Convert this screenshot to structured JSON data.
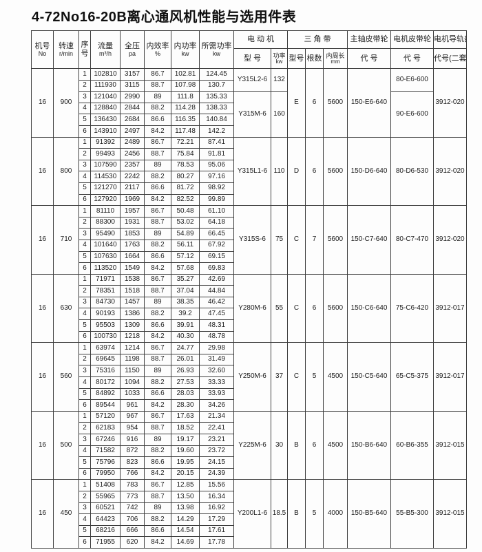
{
  "title": "4-72No16-20B离心通风机性能与选用件表",
  "table": {
    "headers": {
      "machine_no": {
        "l1": "机号",
        "l2": "No"
      },
      "speed": {
        "l1": "转速",
        "l2": "r/min"
      },
      "seq": {
        "l1": "序",
        "l2": "号"
      },
      "flow": {
        "l1": "流量",
        "l2": "m³/h"
      },
      "pressure": {
        "l1": "全压",
        "l2": "pa"
      },
      "efficiency": {
        "l1": "内效率",
        "l2": "%"
      },
      "internal_power": {
        "l1": "内功率",
        "l2": "kw"
      },
      "required_power": {
        "l1": "所需功率",
        "l2": "kw"
      },
      "motor_group": "电 动 机",
      "motor_model": "型 号",
      "motor_power": {
        "l1": "功率",
        "l2": "kw"
      },
      "belt_group": "三 角 带",
      "belt_model": "型号",
      "belt_count": "根数",
      "belt_length": {
        "l1": "内周长",
        "l2": "mm"
      },
      "main_pulley_group": "主轴皮带轮",
      "main_pulley_code": "代 号",
      "motor_pulley_group": "电机皮带轮",
      "motor_pulley_code": "代 号",
      "rail_group": "电机导轨部",
      "rail_code": "代号(二套)"
    },
    "blocks": [
      {
        "machine_no": "16",
        "speed": "900",
        "rows": [
          [
            "1",
            "102810",
            "3157",
            "86.7",
            "102.81",
            "124.45"
          ],
          [
            "2",
            "111930",
            "3115",
            "88.7",
            "107.98",
            "130.7"
          ],
          [
            "3",
            "121040",
            "2990",
            "89",
            "111.8",
            "135.33"
          ],
          [
            "4",
            "128840",
            "2844",
            "88.2",
            "114.28",
            "138.33"
          ],
          [
            "5",
            "136430",
            "2684",
            "86.6",
            "116.35",
            "140.84"
          ],
          [
            "6",
            "143910",
            "2497",
            "84.2",
            "117.48",
            "142.2"
          ]
        ],
        "motors": [
          {
            "model": "Y315L2-6",
            "power": "132",
            "span": 2
          },
          {
            "model": "Y315M-6",
            "power": "160",
            "span": 4
          }
        ],
        "belt": {
          "model": "E",
          "count": "6",
          "length": "5600"
        },
        "main_pulley": "150-E6-640",
        "motor_pulleys": [
          {
            "code": "80-E6-600",
            "span": 2
          },
          {
            "code": "90-E6-600",
            "span": 4
          }
        ],
        "rail": "3912-020"
      },
      {
        "machine_no": "16",
        "speed": "800",
        "rows": [
          [
            "1",
            "91392",
            "2489",
            "86.7",
            "72.21",
            "87.41"
          ],
          [
            "2",
            "99493",
            "2456",
            "88.7",
            "75.84",
            "91.81"
          ],
          [
            "3",
            "107590",
            "2357",
            "89",
            "78.53",
            "95.06"
          ],
          [
            "4",
            "114530",
            "2242",
            "88.2",
            "80.27",
            "97.16"
          ],
          [
            "5",
            "121270",
            "2117",
            "86.6",
            "81.72",
            "98.92"
          ],
          [
            "6",
            "127920",
            "1969",
            "84.2",
            "82.52",
            "99.89"
          ]
        ],
        "motors": [
          {
            "model": "Y315L1-6",
            "power": "110",
            "span": 6
          }
        ],
        "belt": {
          "model": "D",
          "count": "6",
          "length": "5600"
        },
        "main_pulley": "150-D6-640",
        "motor_pulleys": [
          {
            "code": "80-D6-530",
            "span": 6
          }
        ],
        "rail": "3912-020"
      },
      {
        "machine_no": "16",
        "speed": "710",
        "rows": [
          [
            "1",
            "81110",
            "1957",
            "86.7",
            "50.48",
            "61.10"
          ],
          [
            "2",
            "88300",
            "1931",
            "88.7",
            "53.02",
            "64.18"
          ],
          [
            "3",
            "95490",
            "1853",
            "89",
            "54.89",
            "66.45"
          ],
          [
            "4",
            "101640",
            "1763",
            "88.2",
            "56.11",
            "67.92"
          ],
          [
            "5",
            "107630",
            "1664",
            "86.6",
            "57.12",
            "69.15"
          ],
          [
            "6",
            "113520",
            "1549",
            "84.2",
            "57.68",
            "69.83"
          ]
        ],
        "motors": [
          {
            "model": "Y315S-6",
            "power": "75",
            "span": 6
          }
        ],
        "belt": {
          "model": "C",
          "count": "7",
          "length": "5600"
        },
        "main_pulley": "150-C7-640",
        "motor_pulleys": [
          {
            "code": "80-C7-470",
            "span": 6
          }
        ],
        "rail": "3912-020"
      },
      {
        "machine_no": "16",
        "speed": "630",
        "rows": [
          [
            "1",
            "71971",
            "1538",
            "86.7",
            "35.27",
            "42.69"
          ],
          [
            "2",
            "78351",
            "1518",
            "88.7",
            "37.04",
            "44.84"
          ],
          [
            "3",
            "84730",
            "1457",
            "89",
            "38.35",
            "46.42"
          ],
          [
            "4",
            "90193",
            "1386",
            "88.2",
            "39.2",
            "47.45"
          ],
          [
            "5",
            "95503",
            "1309",
            "86.6",
            "39.91",
            "48.31"
          ],
          [
            "6",
            "100730",
            "1218",
            "84.2",
            "40.30",
            "48.78"
          ]
        ],
        "motors": [
          {
            "model": "Y280M-6",
            "power": "55",
            "span": 6
          }
        ],
        "belt": {
          "model": "C",
          "count": "6",
          "length": "5600"
        },
        "main_pulley": "150-C6-640",
        "motor_pulleys": [
          {
            "code": "75-C6-420",
            "span": 6
          }
        ],
        "rail": "3912-017"
      },
      {
        "machine_no": "16",
        "speed": "560",
        "rows": [
          [
            "1",
            "63974",
            "1214",
            "86.7",
            "24.77",
            "29.98"
          ],
          [
            "2",
            "69645",
            "1198",
            "88.7",
            "26.01",
            "31.49"
          ],
          [
            "3",
            "75316",
            "1150",
            "89",
            "26.93",
            "32.60"
          ],
          [
            "4",
            "80172",
            "1094",
            "88.2",
            "27.53",
            "33.33"
          ],
          [
            "5",
            "84892",
            "1033",
            "86.6",
            "28.03",
            "33.93"
          ],
          [
            "6",
            "89544",
            "961",
            "84.2",
            "28.30",
            "34.26"
          ]
        ],
        "motors": [
          {
            "model": "Y250M-6",
            "power": "37",
            "span": 6
          }
        ],
        "belt": {
          "model": "C",
          "count": "5",
          "length": "4500"
        },
        "main_pulley": "150-C5-640",
        "motor_pulleys": [
          {
            "code": "65-C5-375",
            "span": 6
          }
        ],
        "rail": "3912-017"
      },
      {
        "machine_no": "16",
        "speed": "500",
        "rows": [
          [
            "1",
            "57120",
            "967",
            "86.7",
            "17.63",
            "21.34"
          ],
          [
            "2",
            "62183",
            "954",
            "88.7",
            "18.52",
            "22.41"
          ],
          [
            "3",
            "67246",
            "916",
            "89",
            "19.17",
            "23.21"
          ],
          [
            "4",
            "71582",
            "872",
            "88.2",
            "19.60",
            "23.72"
          ],
          [
            "5",
            "75796",
            "823",
            "86.6",
            "19.95",
            "24.15"
          ],
          [
            "6",
            "79950",
            "766",
            "84.2",
            "20.15",
            "24.39"
          ]
        ],
        "motors": [
          {
            "model": "Y225M-6",
            "power": "30",
            "span": 6
          }
        ],
        "belt": {
          "model": "B",
          "count": "6",
          "length": "4500"
        },
        "main_pulley": "150-B6-640",
        "motor_pulleys": [
          {
            "code": "60-B6-355",
            "span": 6
          }
        ],
        "rail": "3912-015"
      },
      {
        "machine_no": "16",
        "speed": "450",
        "rows": [
          [
            "1",
            "51408",
            "783",
            "86.7",
            "12.85",
            "15.56"
          ],
          [
            "2",
            "55965",
            "773",
            "88.7",
            "13.50",
            "16.34"
          ],
          [
            "3",
            "60521",
            "742",
            "89",
            "13.98",
            "16.92"
          ],
          [
            "4",
            "64423",
            "706",
            "88.2",
            "14.29",
            "17.29"
          ],
          [
            "5",
            "68216",
            "666",
            "86.6",
            "14.54",
            "17.61"
          ],
          [
            "6",
            "71955",
            "620",
            "84.2",
            "14.69",
            "17.78"
          ]
        ],
        "motors": [
          {
            "model": "Y200L1-6",
            "power": "18.5",
            "span": 6
          }
        ],
        "belt": {
          "model": "B",
          "count": "5",
          "length": "4000"
        },
        "main_pulley": "150-B5-640",
        "motor_pulleys": [
          {
            "code": "55-B5-300",
            "span": 6
          }
        ],
        "rail": "3912-015"
      }
    ]
  }
}
